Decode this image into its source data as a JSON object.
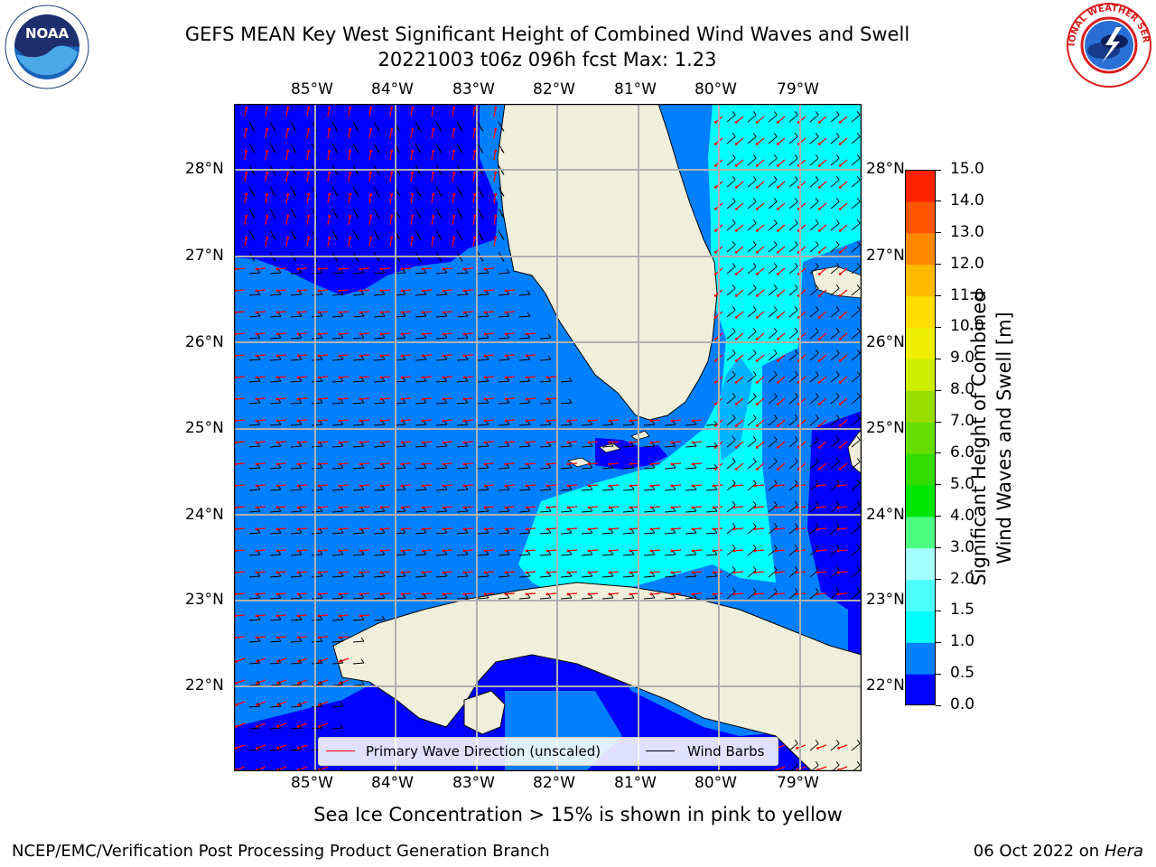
{
  "title": {
    "line1": "GEFS MEAN Key West Significant Height of Combined Wind Waves and Swell",
    "line2": "20221003 t06z 096h fcst   Max: 1.23"
  },
  "map": {
    "lon_labels": [
      "85°W",
      "84°W",
      "83°W",
      "82°W",
      "81°W",
      "80°W",
      "79°W"
    ],
    "lat_labels": [
      "28°N",
      "27°N",
      "26°N",
      "25°N",
      "24°N",
      "23°N",
      "22°N"
    ],
    "colors": {
      "ocean_dark": "#0000ff",
      "ocean_mid": "#0080ff",
      "ocean_light": "#00ffff",
      "land": "#efefdc",
      "grid": "#b0b0b0",
      "wave_arrow": "#ff0000",
      "wind_barb": "#000000"
    }
  },
  "legend": {
    "wave_label": "Primary Wave Direction (unscaled)",
    "wind_label": "Wind Barbs"
  },
  "colorbar": {
    "label_line1": "Significant Height of Combined",
    "label_line2": "Wind Waves and Swell [m]",
    "ticks": [
      "0.0",
      "0.5",
      "1.0",
      "1.5",
      "2.0",
      "3.0",
      "4.0",
      "5.0",
      "6.0",
      "7.0",
      "8.0",
      "9.0",
      "10.0",
      "11.0",
      "12.0",
      "13.0",
      "14.0",
      "15.0"
    ],
    "colors": [
      "#0000ff",
      "#0080ff",
      "#00ffff",
      "#4dffff",
      "#a6ffff",
      "#4dff80",
      "#00e600",
      "#33dd00",
      "#66dd00",
      "#99dd00",
      "#ccee00",
      "#eeee00",
      "#ffdd00",
      "#ffbb00",
      "#ff8800",
      "#ff5500",
      "#ff2200"
    ]
  },
  "caption": "Sea Ice Concentration > 15% is shown in pink to yellow",
  "footer": {
    "left": "NCEP/EMC/Verification Post Processing Product Generation Branch",
    "date": "06 Oct 2022 on",
    "machine": "Hera"
  },
  "logos": {
    "noaa": "NOAA",
    "nws_ring": "NATIONAL WEATHER SERVICE"
  }
}
